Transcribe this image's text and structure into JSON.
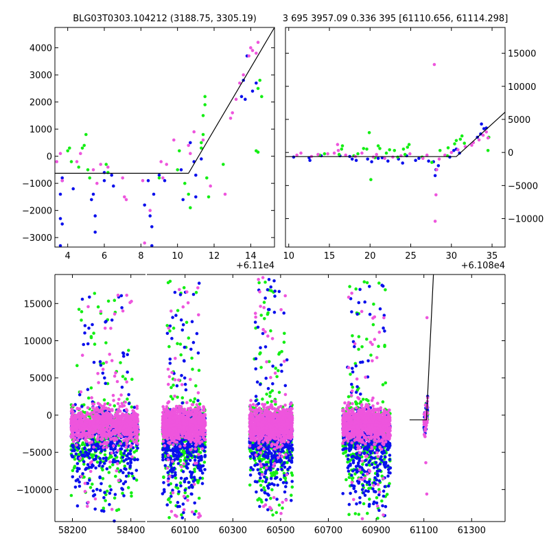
{
  "titles": {
    "left": "BLG03T0303.104212 (3188.75, 3305.19)",
    "right": "3 695 3957.09 0.336 395 [61110.656, 61114.298]"
  },
  "colors": {
    "blue": "#0a10ec",
    "green": "#14ee14",
    "pink": "#ee55dd",
    "line": "#000000"
  },
  "chart_data": [
    {
      "id": "top-left",
      "type": "scatter",
      "xlim": [
        61103.3,
        61115.3
      ],
      "ylim": [
        -3350,
        4750
      ],
      "x_offset_label": "+6.11e4",
      "x_ticks": [
        61104,
        61106,
        61108,
        61110,
        61112,
        61114
      ],
      "x_tick_labels": [
        "4",
        "6",
        "8",
        "10",
        "12",
        "14"
      ],
      "y_ticks": [
        -3000,
        -2000,
        -1000,
        0,
        1000,
        2000,
        3000,
        4000
      ],
      "y_tick_labels": [
        "−3000",
        "−2000",
        "−1000",
        "0",
        "1000",
        "2000",
        "3000",
        "4000"
      ],
      "y_side": "left",
      "model_line": {
        "x": [
          61103.3,
          61110.6,
          61115.3
        ],
        "y": [
          -630,
          -630,
          4750
        ]
      },
      "series": [
        {
          "name": "blue",
          "points": [
            [
              61103.7,
              -800
            ],
            [
              61103.7,
              -900
            ],
            [
              61103.6,
              -1400
            ],
            [
              61103.6,
              -2300
            ],
            [
              61103.7,
              -2500
            ],
            [
              61103.6,
              -3300
            ],
            [
              61105.4,
              -1400
            ],
            [
              61105.5,
              -2200
            ],
            [
              61105.5,
              -2800
            ],
            [
              61106.0,
              -600
            ],
            [
              61106.0,
              -900
            ],
            [
              61106.5,
              -1100
            ],
            [
              61108.4,
              -900
            ],
            [
              61108.5,
              -2200
            ],
            [
              61108.6,
              -2600
            ],
            [
              61108.6,
              -3300
            ],
            [
              61108.7,
              -1400
            ],
            [
              61109.3,
              -900
            ],
            [
              61110.2,
              -500
            ],
            [
              61110.3,
              -1600
            ],
            [
              61110.9,
              -200
            ],
            [
              61111.0,
              -700
            ],
            [
              61111.0,
              -1500
            ],
            [
              61111.3,
              -100
            ],
            [
              61113.5,
              2200
            ],
            [
              61113.6,
              2800
            ],
            [
              61113.7,
              2100
            ],
            [
              61113.8,
              3700
            ],
            [
              61114.1,
              2400
            ],
            [
              61114.3,
              2700
            ],
            [
              61106.4,
              -700
            ],
            [
              61108.2,
              -1800
            ],
            [
              61104.3,
              -1200
            ],
            [
              61110.7,
              500
            ],
            [
              61105.3,
              -1600
            ],
            [
              61109.0,
              -700
            ]
          ]
        },
        {
          "name": "green",
          "points": [
            [
              61104.0,
              200
            ],
            [
              61104.1,
              300
            ],
            [
              61104.2,
              -200
            ],
            [
              61104.6,
              -400
            ],
            [
              61104.8,
              300
            ],
            [
              61104.9,
              400
            ],
            [
              61105.0,
              800
            ],
            [
              61105.1,
              -500
            ],
            [
              61105.2,
              -800
            ],
            [
              61106.1,
              -300
            ],
            [
              61106.2,
              -600
            ],
            [
              61109.0,
              -800
            ],
            [
              61110.0,
              -500
            ],
            [
              61110.1,
              200
            ],
            [
              61110.4,
              -1000
            ],
            [
              61110.6,
              -1400
            ],
            [
              61110.7,
              -1900
            ],
            [
              61111.3,
              500
            ],
            [
              61111.4,
              800
            ],
            [
              61111.4,
              1500
            ],
            [
              61111.5,
              2200
            ],
            [
              61111.6,
              -800
            ],
            [
              61111.7,
              -1500
            ],
            [
              61112.5,
              -300
            ],
            [
              61114.3,
              200
            ],
            [
              61114.4,
              2500
            ],
            [
              61114.5,
              2800
            ],
            [
              61114.6,
              2200
            ],
            [
              61114.4,
              150
            ],
            [
              61111.5,
              1900
            ],
            [
              61111.3,
              300
            ]
          ]
        },
        {
          "name": "pink",
          "points": [
            [
              61103.4,
              -200
            ],
            [
              61103.6,
              100
            ],
            [
              61103.7,
              -900
            ],
            [
              61104.5,
              -200
            ],
            [
              61104.7,
              100
            ],
            [
              61105.4,
              -500
            ],
            [
              61105.6,
              -1000
            ],
            [
              61105.8,
              -300
            ],
            [
              61106.2,
              -400
            ],
            [
              61107.0,
              -800
            ],
            [
              61107.1,
              -1500
            ],
            [
              61107.2,
              -1600
            ],
            [
              61108.1,
              -900
            ],
            [
              61108.2,
              -3200
            ],
            [
              61108.5,
              -2000
            ],
            [
              61109.1,
              -200
            ],
            [
              61109.2,
              -800
            ],
            [
              61109.4,
              -300
            ],
            [
              61110.6,
              400
            ],
            [
              61110.7,
              100
            ],
            [
              61111.4,
              600
            ],
            [
              61111.8,
              -1100
            ],
            [
              61112.6,
              -1400
            ],
            [
              61112.9,
              1400
            ],
            [
              61113.0,
              1600
            ],
            [
              61113.2,
              2100
            ],
            [
              61113.4,
              2700
            ],
            [
              61113.6,
              3000
            ],
            [
              61113.9,
              3700
            ],
            [
              61114.0,
              4000
            ],
            [
              61114.1,
              3900
            ],
            [
              61114.3,
              3800
            ],
            [
              61114.4,
              4200
            ],
            [
              61110.9,
              900
            ],
            [
              61109.8,
              600
            ]
          ]
        }
      ]
    },
    {
      "id": "top-right",
      "type": "scatter",
      "xlim": [
        61089.6,
        61116.6
      ],
      "ylim": [
        -14300,
        18900
      ],
      "x_offset_label": "+6.108e4",
      "x_ticks": [
        61090,
        61095,
        61100,
        61105,
        61110,
        61115
      ],
      "x_tick_labels": [
        "10",
        "15",
        "20",
        "25",
        "30",
        "35"
      ],
      "y_ticks": [
        -10000,
        -5000,
        0,
        5000,
        10000,
        15000
      ],
      "y_tick_labels": [
        "−10000",
        "−5000",
        "0",
        "5000",
        "10000",
        "15000"
      ],
      "y_side": "right",
      "model_line": {
        "x": [
          61089.6,
          61110.6,
          61116.6
        ],
        "y": [
          -630,
          -630,
          6100
        ]
      },
      "series": [
        {
          "name": "blue",
          "points": [
            [
              61092.5,
              -800
            ],
            [
              61092.6,
              -1200
            ],
            [
              61094.0,
              -500
            ],
            [
              61097.5,
              -600
            ],
            [
              61097.8,
              -1000
            ],
            [
              61098.3,
              -1200
            ],
            [
              61099.7,
              -1000
            ],
            [
              61100.2,
              -1400
            ],
            [
              61101.5,
              -800
            ],
            [
              61102.2,
              -1300
            ],
            [
              61103.5,
              -1000
            ],
            [
              61104.0,
              -1600
            ],
            [
              61104.5,
              -500
            ],
            [
              61105.6,
              -1200
            ],
            [
              61106.0,
              -900
            ],
            [
              61107.2,
              -1300
            ],
            [
              61107.8,
              -1400
            ],
            [
              61108.0,
              -3500
            ],
            [
              61108.1,
              -2600
            ],
            [
              61109.8,
              -700
            ],
            [
              61110.3,
              300
            ],
            [
              61110.6,
              500
            ],
            [
              61111.0,
              -100
            ],
            [
              61113.2,
              2300
            ],
            [
              61113.6,
              2800
            ],
            [
              61113.7,
              4300
            ],
            [
              61114.0,
              3600
            ],
            [
              61114.3,
              3700
            ],
            [
              61090.6,
              -700
            ],
            [
              61096.3,
              -500
            ],
            [
              61101.0,
              -900
            ],
            [
              61108.4,
              -2000
            ]
          ]
        },
        {
          "name": "green",
          "points": [
            [
              61093.8,
              -400
            ],
            [
              61094.4,
              -200
            ],
            [
              61096.2,
              -300
            ],
            [
              61096.5,
              500
            ],
            [
              61096.6,
              1000
            ],
            [
              61098.0,
              -500
            ],
            [
              61098.5,
              -200
            ],
            [
              61099.2,
              600
            ],
            [
              61099.6,
              500
            ],
            [
              61099.9,
              3000
            ],
            [
              61100.1,
              -4100
            ],
            [
              61100.6,
              -800
            ],
            [
              61101.0,
              1000
            ],
            [
              61101.2,
              600
            ],
            [
              61102.0,
              -100
            ],
            [
              61102.4,
              400
            ],
            [
              61103.0,
              300
            ],
            [
              61103.4,
              -700
            ],
            [
              61104.1,
              500
            ],
            [
              61104.3,
              -300
            ],
            [
              61104.6,
              800
            ],
            [
              61104.8,
              1200
            ],
            [
              61106.4,
              -700
            ],
            [
              61107.6,
              -1500
            ],
            [
              61108.6,
              300
            ],
            [
              61109.5,
              -500
            ],
            [
              61109.6,
              700
            ],
            [
              61110.4,
              1300
            ],
            [
              61110.6,
              1800
            ],
            [
              61111.1,
              2000
            ],
            [
              61111.3,
              2500
            ],
            [
              61111.6,
              1400
            ],
            [
              61114.5,
              300
            ],
            [
              61114.6,
              2300
            ]
          ]
        },
        {
          "name": "pink",
          "points": [
            [
              61091.0,
              -400
            ],
            [
              61091.5,
              -100
            ],
            [
              61092.8,
              -600
            ],
            [
              61093.6,
              -300
            ],
            [
              61094.8,
              -200
            ],
            [
              61095.6,
              -100
            ],
            [
              61096.0,
              1200
            ],
            [
              61096.1,
              300
            ],
            [
              61097.0,
              -400
            ],
            [
              61098.2,
              -600
            ],
            [
              61099.0,
              -100
            ],
            [
              61100.4,
              -700
            ],
            [
              61100.8,
              -300
            ],
            [
              61101.8,
              -900
            ],
            [
              61102.8,
              -700
            ],
            [
              61103.8,
              -500
            ],
            [
              61104.9,
              -200
            ],
            [
              61106.5,
              -900
            ],
            [
              61107.0,
              -400
            ],
            [
              61107.9,
              13300
            ],
            [
              61108.0,
              -10400
            ],
            [
              61108.1,
              -6400
            ],
            [
              61108.2,
              -2600
            ],
            [
              61108.5,
              -1000
            ],
            [
              61109.2,
              -400
            ],
            [
              61110.0,
              0
            ],
            [
              61110.8,
              400
            ],
            [
              61111.7,
              900
            ],
            [
              61112.5,
              1100
            ],
            [
              61112.7,
              1500
            ],
            [
              61113.4,
              1900
            ],
            [
              61113.9,
              2600
            ],
            [
              61114.3,
              3100
            ],
            [
              61114.5,
              2200
            ]
          ]
        }
      ]
    },
    {
      "id": "bottom",
      "type": "scatter",
      "ylim": [
        -14300,
        18900
      ],
      "y_ticks": [
        -10000,
        -5000,
        0,
        5000,
        10000,
        15000
      ],
      "y_tick_labels": [
        "−10000",
        "−5000",
        "0",
        "5000",
        "10000",
        "15000"
      ],
      "y_side": "left",
      "segments": [
        {
          "xlim": [
            58140,
            58450
          ],
          "x_ticks": [
            58200,
            58400
          ],
          "x_tick_labels": [
            "58200",
            "58400"
          ]
        },
        {
          "xlim": [
            59940,
            61440
          ],
          "x_ticks": [
            60100,
            60300,
            60500,
            60700,
            60900,
            61100,
            61300
          ],
          "x_tick_labels": [
            "60100",
            "60300",
            "60500",
            "60700",
            "60900",
            "61100",
            "61300"
          ]
        }
      ],
      "clusters": [
        {
          "xmin": 58195,
          "xmax": 58425,
          "spread_lo": -13800,
          "spread_hi": 16500
        },
        {
          "xmin": 60005,
          "xmax": 60185,
          "spread_lo": -14000,
          "spread_hi": 18000
        },
        {
          "xmin": 60370,
          "xmax": 60550,
          "spread_lo": -13500,
          "spread_hi": 18500
        },
        {
          "xmin": 60760,
          "xmax": 60960,
          "spread_lo": -14000,
          "spread_hi": 18000
        }
      ],
      "final_cluster": {
        "xmin": 61100,
        "xmax": 61116
      },
      "model_line": {
        "x": [
          61040,
          61110.6,
          61140
        ],
        "y": [
          -630,
          -630,
          18900
        ]
      }
    }
  ]
}
